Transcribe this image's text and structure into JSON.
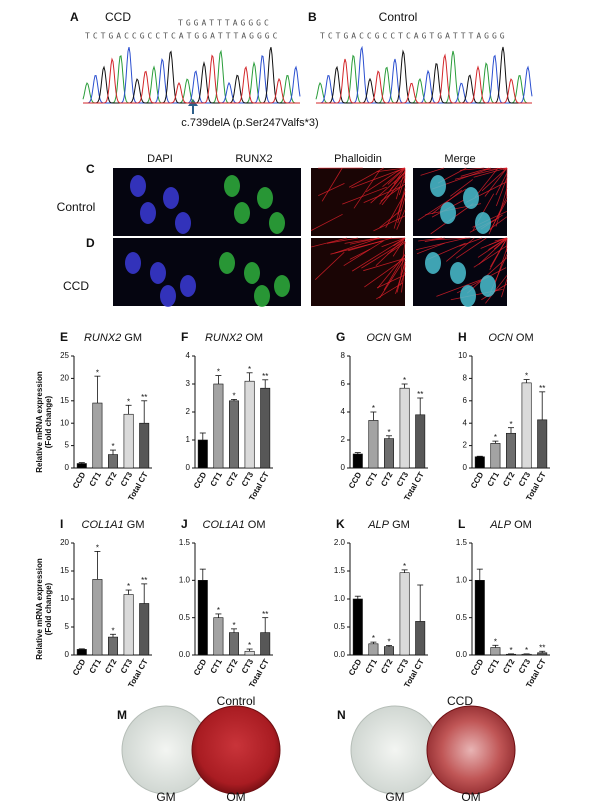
{
  "sequencing": [
    {
      "letter": "A",
      "label": "CCD",
      "sequences": [
        "TGGATTTAGGGC",
        "TCTGACCGCCTCATGGATTTAGGGC"
      ],
      "mutation": "c.739delA (p.Ser247Valfs*3)"
    },
    {
      "letter": "B",
      "label": "Control",
      "sequences": [
        "TCTGACCGCCTCAGTGATTTAGGG"
      ]
    }
  ],
  "immunofluorescence": {
    "letters": [
      "C",
      "D"
    ],
    "columns": [
      "DAPI",
      "RUNX2",
      "Phalloidin",
      "Merge"
    ],
    "rows": [
      "Control",
      "CCD"
    ]
  },
  "staining": [
    {
      "letter": "M",
      "label": "Control",
      "wells": [
        "GM",
        "OM"
      ]
    },
    {
      "letter": "N",
      "label": "CCD",
      "wells": [
        "GM",
        "OM"
      ]
    }
  ],
  "chart_data": [
    {
      "type": "bar",
      "letter": "E",
      "gene": "RUNX2",
      "condition": "GM",
      "ylabel": [
        "Relative mRNA expression",
        "(Fold change)"
      ],
      "categories": [
        "CCD",
        "CT1",
        "CT2",
        "CT3",
        "Total CT"
      ],
      "values": [
        1,
        14.5,
        3,
        12,
        10
      ],
      "errors": [
        0.2,
        6,
        1,
        2,
        5
      ],
      "annotations": [
        null,
        "*",
        "*",
        "*",
        "**"
      ],
      "colors": [
        "#000000",
        "#a3a3a3",
        "#6e6e6e",
        "#dadada",
        "#575757"
      ],
      "ylim": [
        0,
        25
      ],
      "yticks": [
        0,
        5,
        10,
        15,
        20,
        25
      ]
    },
    {
      "type": "bar",
      "letter": "F",
      "gene": "RUNX2",
      "condition": "OM",
      "categories": [
        "CCD",
        "CT1",
        "CT2",
        "CT3",
        "Total CT"
      ],
      "values": [
        1,
        3,
        2.4,
        3.1,
        2.85
      ],
      "errors": [
        0.25,
        0.3,
        0.05,
        0.3,
        0.3
      ],
      "annotations": [
        null,
        "*",
        "*",
        "*",
        "**"
      ],
      "colors": [
        "#000000",
        "#a3a3a3",
        "#6e6e6e",
        "#dadada",
        "#575757"
      ],
      "ylim": [
        0,
        4
      ],
      "yticks": [
        0,
        1,
        2,
        3,
        4
      ]
    },
    {
      "type": "bar",
      "letter": "G",
      "gene": "OCN",
      "condition": "GM",
      "categories": [
        "CCD",
        "CT1",
        "CT2",
        "CT3",
        "Total CT"
      ],
      "values": [
        1,
        3.4,
        2.1,
        5.7,
        3.8
      ],
      "errors": [
        0.1,
        0.6,
        0.2,
        0.3,
        1.2
      ],
      "annotations": [
        null,
        "*",
        "*",
        "*",
        "**"
      ],
      "colors": [
        "#000000",
        "#a3a3a3",
        "#6e6e6e",
        "#dadada",
        "#575757"
      ],
      "ylim": [
        0,
        8
      ],
      "yticks": [
        0,
        2,
        4,
        6,
        8
      ]
    },
    {
      "type": "bar",
      "letter": "H",
      "gene": "OCN",
      "condition": "OM",
      "categories": [
        "CCD",
        "CT1",
        "CT2",
        "CT3",
        "Total CT"
      ],
      "values": [
        1,
        2.2,
        3.1,
        7.6,
        4.3
      ],
      "errors": [
        0.05,
        0.2,
        0.5,
        0.3,
        2.5
      ],
      "annotations": [
        null,
        "*",
        "*",
        "*",
        "**"
      ],
      "colors": [
        "#000000",
        "#a3a3a3",
        "#6e6e6e",
        "#dadada",
        "#575757"
      ],
      "ylim": [
        0,
        10
      ],
      "yticks": [
        0,
        2,
        4,
        6,
        8,
        10
      ]
    },
    {
      "type": "bar",
      "letter": "I",
      "gene": "COL1A1",
      "condition": "GM",
      "ylabel": [
        "Relative mRNA expression",
        "(Fold change)"
      ],
      "categories": [
        "CCD",
        "CT1",
        "CT2",
        "CT3",
        "Total CT"
      ],
      "values": [
        1,
        13.5,
        3.2,
        10.8,
        9.2
      ],
      "errors": [
        0.1,
        5,
        0.5,
        0.8,
        3.5
      ],
      "annotations": [
        null,
        "*",
        "*",
        "*",
        "**"
      ],
      "colors": [
        "#000000",
        "#a3a3a3",
        "#6e6e6e",
        "#dadada",
        "#575757"
      ],
      "ylim": [
        0,
        20
      ],
      "yticks": [
        0,
        5,
        10,
        15,
        20
      ]
    },
    {
      "type": "bar",
      "letter": "J",
      "gene": "COL1A1",
      "condition": "OM",
      "categories": [
        "CCD",
        "CT1",
        "CT2",
        "CT3",
        "Total CT"
      ],
      "values": [
        1,
        0.5,
        0.3,
        0.05,
        0.3
      ],
      "errors": [
        0.15,
        0.05,
        0.05,
        0.03,
        0.2
      ],
      "annotations": [
        null,
        "*",
        "*",
        "*",
        "**"
      ],
      "colors": [
        "#000000",
        "#a3a3a3",
        "#6e6e6e",
        "#dadada",
        "#575757"
      ],
      "ylim": [
        0,
        1.5
      ],
      "yticks": [
        {
          "value": 0,
          "label": "0.0"
        },
        0.5,
        {
          "value": 1,
          "label": "1.0"
        },
        1.5
      ]
    },
    {
      "type": "bar",
      "letter": "K",
      "gene": "ALP",
      "condition": "GM",
      "categories": [
        "CCD",
        "CT1",
        "CT2",
        "CT3",
        "Total CT"
      ],
      "values": [
        1,
        0.2,
        0.15,
        1.47,
        0.6
      ],
      "errors": [
        0.05,
        0.03,
        0.02,
        0.05,
        0.65
      ],
      "annotations": [
        null,
        "*",
        "*",
        "*",
        null
      ],
      "colors": [
        "#000000",
        "#a3a3a3",
        "#6e6e6e",
        "#dadada",
        "#575757"
      ],
      "ylim": [
        0,
        2
      ],
      "yticks": [
        {
          "value": 0,
          "label": "0.0"
        },
        0.5,
        {
          "value": 1,
          "label": "1.0"
        },
        1.5,
        {
          "value": 2,
          "label": "2.0"
        }
      ]
    },
    {
      "type": "bar",
      "letter": "L",
      "gene": "ALP",
      "condition": "OM",
      "categories": [
        "CCD",
        "CT1",
        "CT2",
        "CT3",
        "Total CT"
      ],
      "values": [
        1,
        0.1,
        0.01,
        0.01,
        0.03
      ],
      "errors": [
        0.15,
        0.03,
        0.005,
        0.005,
        0.02
      ],
      "annotations": [
        null,
        "*",
        "*",
        "*",
        "**"
      ],
      "colors": [
        "#000000",
        "#a3a3a3",
        "#6e6e6e",
        "#dadada",
        "#575757"
      ],
      "ylim": [
        0,
        1.5
      ],
      "yticks": [
        {
          "value": 0,
          "label": "0.0"
        },
        0.5,
        {
          "value": 1,
          "label": "1.0"
        },
        1.5
      ]
    }
  ]
}
